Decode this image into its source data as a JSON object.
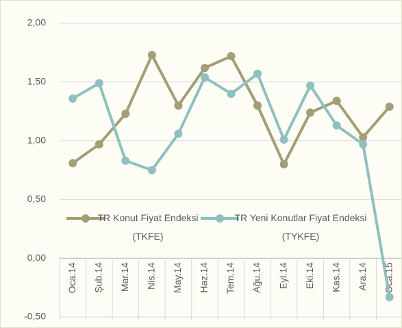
{
  "chart_data": {
    "type": "line",
    "categories": [
      "Oca.14",
      "Şub.14",
      "Mar.14",
      "Nis.14",
      "May.14",
      "Haz.14",
      "Tem.14",
      "Ağu.14",
      "Eyl.14",
      "Eki.14",
      "Kas.14",
      "Ara.14",
      "Oca.15"
    ],
    "series": [
      {
        "name": "TR Konut Fiyat Endeksi (TKFE)",
        "color": "#a39e74",
        "values": [
          0.81,
          0.97,
          1.23,
          1.73,
          1.3,
          1.62,
          1.72,
          1.3,
          0.8,
          1.24,
          1.34,
          1.03,
          1.29
        ]
      },
      {
        "name": "TR Yeni Konutlar Fiyat Endeksi (TYKFE)",
        "color": "#8fbfbf",
        "values": [
          1.36,
          1.49,
          0.83,
          0.75,
          1.06,
          1.54,
          1.4,
          1.57,
          1.01,
          1.47,
          1.13,
          0.97,
          -0.33
        ]
      }
    ],
    "ylim": [
      -0.5,
      2.0
    ],
    "yticks": [
      {
        "value": -0.5,
        "label": "-0,50"
      },
      {
        "value": 0,
        "label": "0,00"
      },
      {
        "value": 0.5,
        "label": "0,50"
      },
      {
        "value": 1.0,
        "label": "1,00"
      },
      {
        "value": 1.5,
        "label": "1,50"
      },
      {
        "value": 2.0,
        "label": "2,00"
      }
    ],
    "grid": true
  }
}
